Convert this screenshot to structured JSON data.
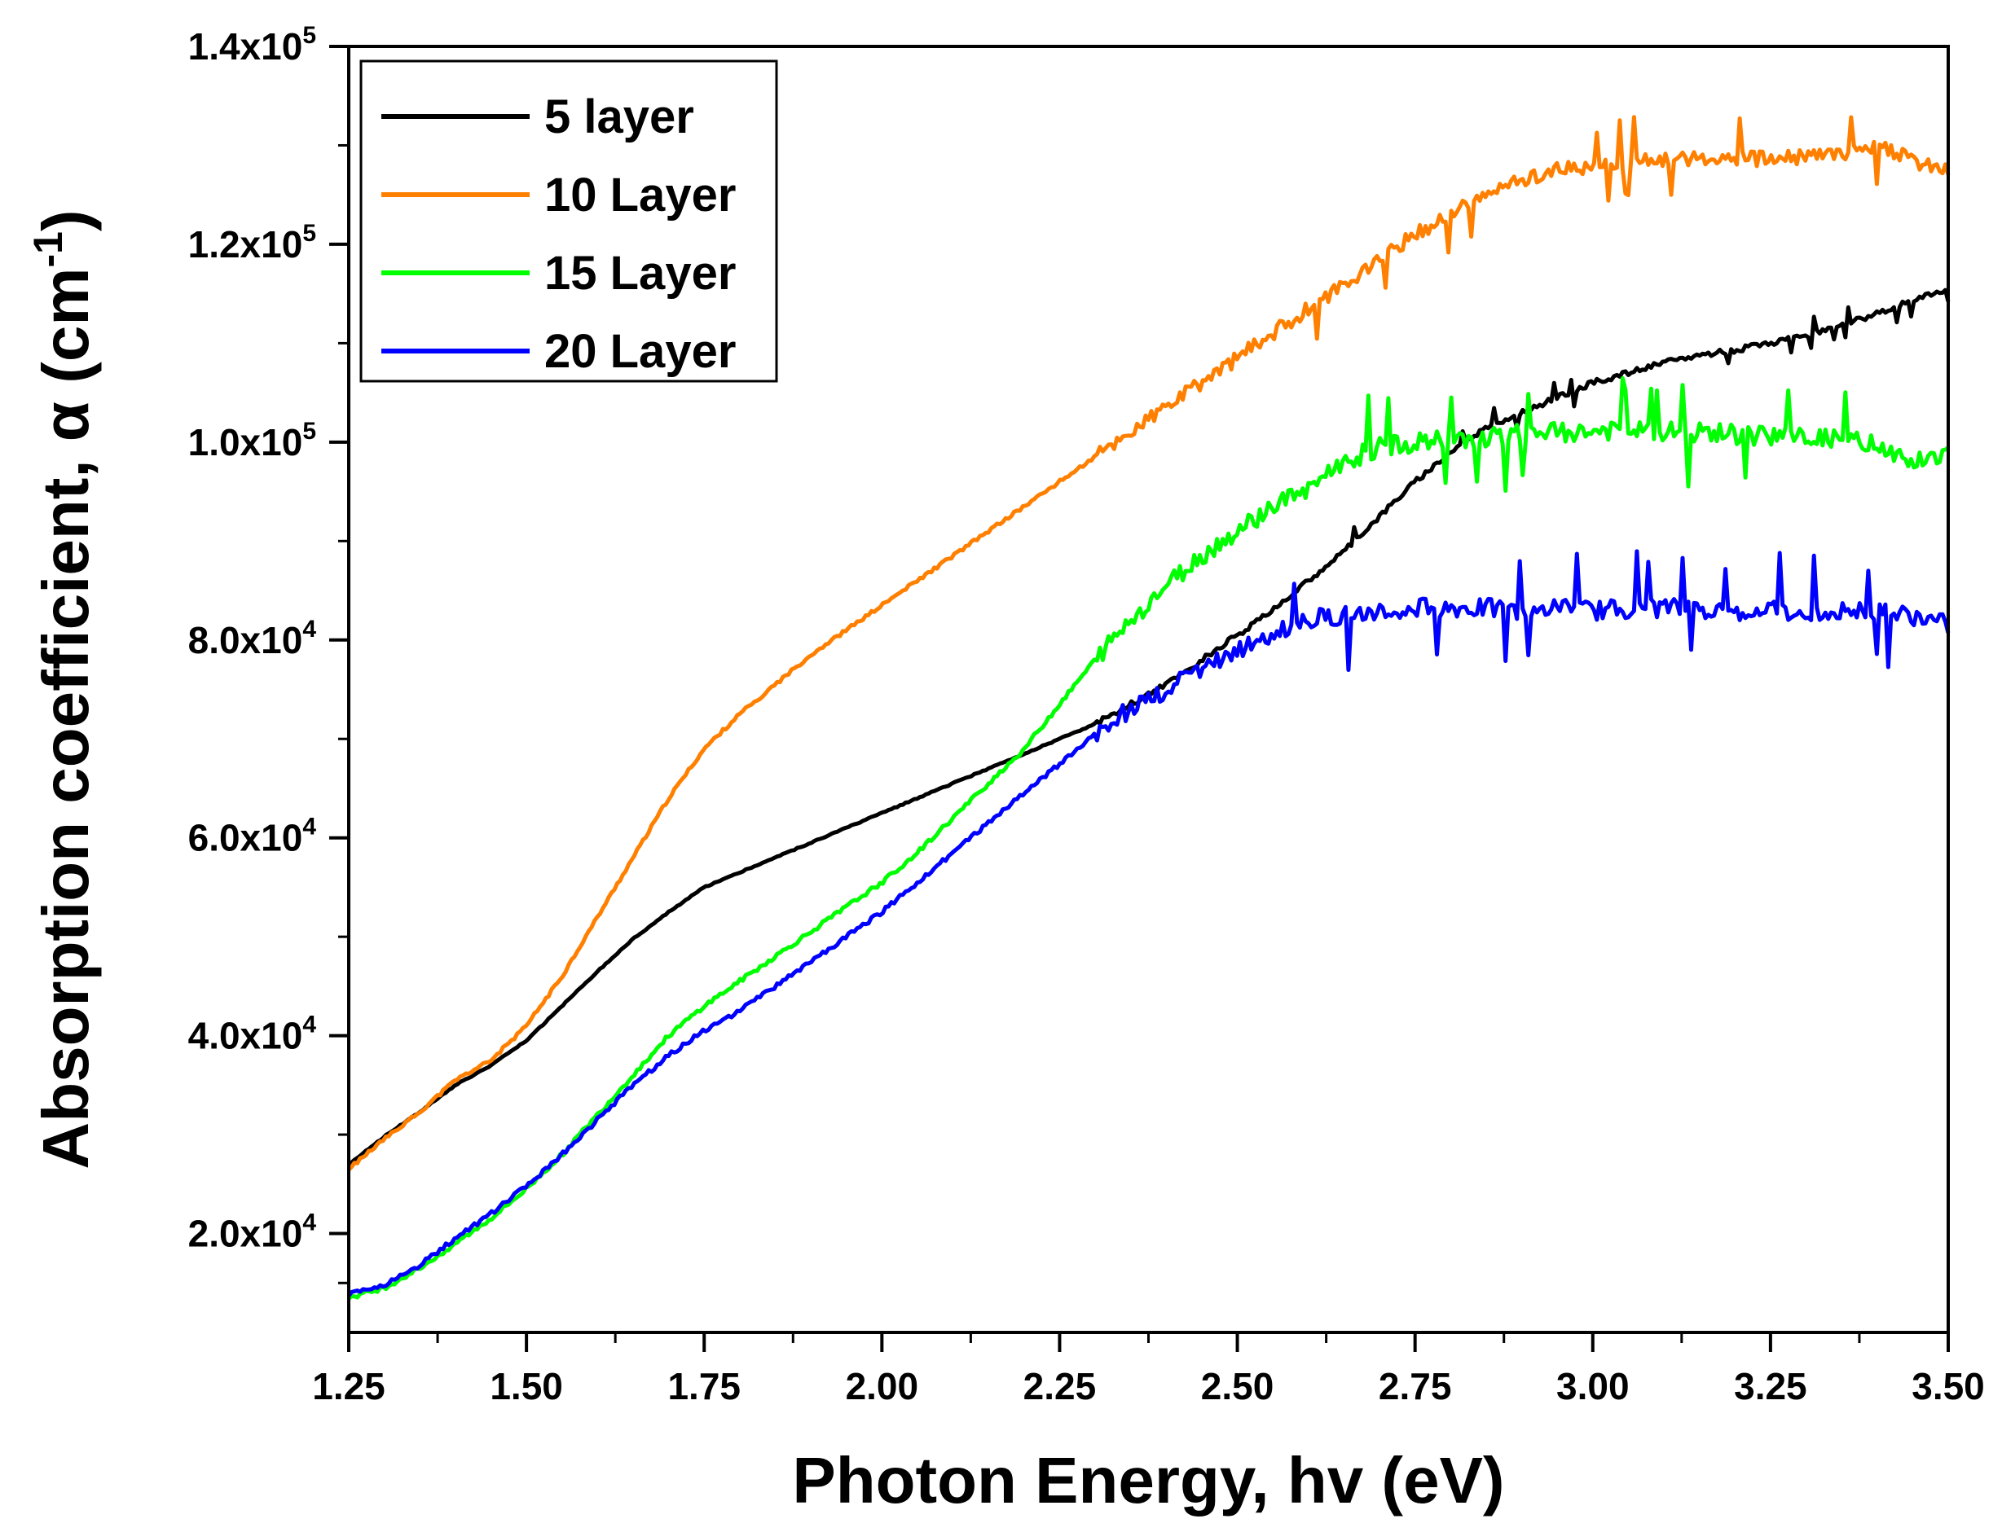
{
  "chart_data": {
    "type": "line",
    "xlabel": "Photon Energy, hv (eV)",
    "ylabel_main": "Absorption coefficient, α (cm",
    "ylabel_sup": "-1",
    "ylabel_close": ")",
    "xlim": [
      1.25,
      3.5
    ],
    "ylim": [
      10000,
      140000
    ],
    "x_ticks": [
      {
        "value": 1.25,
        "label": "1.25"
      },
      {
        "value": 1.5,
        "label": "1.50"
      },
      {
        "value": 1.75,
        "label": "1.75"
      },
      {
        "value": 2.0,
        "label": "2.00"
      },
      {
        "value": 2.25,
        "label": "2.25"
      },
      {
        "value": 2.5,
        "label": "2.50"
      },
      {
        "value": 2.75,
        "label": "2.75"
      },
      {
        "value": 3.0,
        "label": "3.00"
      },
      {
        "value": 3.25,
        "label": "3.25"
      },
      {
        "value": 3.5,
        "label": "3.50"
      }
    ],
    "y_ticks": [
      {
        "value": 20000,
        "mantissa": "2.0x10",
        "exp": "4"
      },
      {
        "value": 40000,
        "mantissa": "4.0x10",
        "exp": "4"
      },
      {
        "value": 60000,
        "mantissa": "6.0x10",
        "exp": "4"
      },
      {
        "value": 80000,
        "mantissa": "8.0x10",
        "exp": "4"
      },
      {
        "value": 100000,
        "mantissa": "1.0x10",
        "exp": "5"
      },
      {
        "value": 120000,
        "mantissa": "1.2x10",
        "exp": "5"
      },
      {
        "value": 140000,
        "mantissa": "1.4x10",
        "exp": "5"
      }
    ],
    "legend_position": "top-left",
    "grid": false,
    "series": [
      {
        "name": "5 layer",
        "color": "#000000",
        "noise": 250,
        "x": [
          1.25,
          1.3,
          1.35,
          1.4,
          1.45,
          1.5,
          1.55,
          1.6,
          1.65,
          1.7,
          1.75,
          1.8,
          1.85,
          1.9,
          1.95,
          2.0,
          2.05,
          2.1,
          2.15,
          2.2,
          2.25,
          2.3,
          2.35,
          2.4,
          2.45,
          2.5,
          2.55,
          2.6,
          2.65,
          2.7,
          2.75,
          2.8,
          2.85,
          2.9,
          2.95,
          3.0,
          3.05,
          3.1,
          3.15,
          3.2,
          3.25,
          3.3,
          3.35,
          3.4,
          3.45,
          3.5
        ],
        "y": [
          27000,
          29800,
          32300,
          35000,
          37000,
          39500,
          43000,
          46500,
          49800,
          52500,
          55000,
          56500,
          58000,
          59500,
          61000,
          62500,
          64000,
          65500,
          67000,
          68500,
          70000,
          71500,
          73500,
          75500,
          78000,
          80500,
          83000,
          86000,
          89000,
          92500,
          96000,
          99000,
          101500,
          103000,
          104500,
          106000,
          107000,
          108000,
          108800,
          109300,
          110000,
          110800,
          111800,
          113000,
          114300,
          115500
        ]
      },
      {
        "name": "10 Layer",
        "color": "#FF8000",
        "noise": 700,
        "x": [
          1.25,
          1.3,
          1.35,
          1.4,
          1.45,
          1.5,
          1.55,
          1.6,
          1.65,
          1.7,
          1.75,
          1.8,
          1.85,
          1.9,
          1.95,
          2.0,
          2.05,
          2.1,
          2.15,
          2.2,
          2.25,
          2.3,
          2.35,
          2.4,
          2.45,
          2.5,
          2.55,
          2.6,
          2.65,
          2.7,
          2.75,
          2.8,
          2.85,
          2.9,
          2.95,
          3.0,
          3.05,
          3.1,
          3.15,
          3.2,
          3.25,
          3.3,
          3.35,
          3.4,
          3.45,
          3.5
        ],
        "y": [
          26500,
          29500,
          32300,
          35500,
          37500,
          41000,
          46000,
          52000,
          58000,
          64000,
          69000,
          72500,
          75500,
          78500,
          81000,
          83500,
          86000,
          88500,
          91000,
          93500,
          96000,
          98500,
          101000,
          103500,
          106000,
          108500,
          111000,
          113500,
          116000,
          118500,
          121000,
          123000,
          125000,
          126500,
          127500,
          128000,
          128300,
          128500,
          128800,
          128700,
          128600,
          128800,
          129200,
          130000,
          128500,
          127500
        ]
      },
      {
        "name": "15 Layer",
        "color": "#00FF00",
        "noise": 900,
        "x": [
          1.25,
          1.3,
          1.35,
          1.4,
          1.45,
          1.5,
          1.55,
          1.6,
          1.65,
          1.7,
          1.75,
          1.8,
          1.85,
          1.9,
          1.95,
          2.0,
          2.05,
          2.1,
          2.15,
          2.2,
          2.25,
          2.3,
          2.35,
          2.4,
          2.45,
          2.5,
          2.55,
          2.6,
          2.65,
          2.7,
          2.75,
          2.8,
          2.85,
          2.9,
          2.95,
          3.0,
          3.05,
          3.1,
          3.15,
          3.2,
          3.25,
          3.3,
          3.35,
          3.4,
          3.45,
          3.5
        ],
        "y": [
          13500,
          14500,
          16500,
          19000,
          21500,
          24500,
          28000,
          32000,
          36000,
          40000,
          43000,
          45500,
          48000,
          50500,
          53000,
          55500,
          58500,
          62000,
          65500,
          69000,
          73500,
          78000,
          82000,
          85500,
          88500,
          91000,
          93500,
          95500,
          98000,
          99500,
          100000,
          100200,
          100500,
          100800,
          101000,
          101000,
          101200,
          101000,
          101000,
          100800,
          100500,
          100500,
          100200,
          100000,
          98000,
          99000
        ]
      },
      {
        "name": "20 Layer",
        "color": "#0000FF",
        "noise": 900,
        "x": [
          1.25,
          1.3,
          1.35,
          1.4,
          1.45,
          1.5,
          1.55,
          1.6,
          1.65,
          1.7,
          1.75,
          1.8,
          1.85,
          1.9,
          1.95,
          2.0,
          2.05,
          2.1,
          2.15,
          2.2,
          2.25,
          2.3,
          2.35,
          2.4,
          2.45,
          2.5,
          2.55,
          2.6,
          2.65,
          2.7,
          2.75,
          2.8,
          2.85,
          2.9,
          2.95,
          3.0,
          3.05,
          3.1,
          3.15,
          3.2,
          3.25,
          3.3,
          3.35,
          3.4,
          3.45,
          3.5
        ],
        "y": [
          13800,
          14800,
          16800,
          19500,
          22000,
          24800,
          28000,
          31500,
          35000,
          38000,
          40500,
          42500,
          45000,
          47500,
          50000,
          52500,
          55500,
          58500,
          61500,
          64500,
          67500,
          70500,
          73000,
          75000,
          77000,
          79000,
          80500,
          82000,
          82500,
          83000,
          83200,
          83300,
          83200,
          83100,
          83200,
          83000,
          83200,
          83300,
          83100,
          83000,
          82900,
          82900,
          82800,
          82700,
          82500,
          81500
        ]
      }
    ]
  }
}
